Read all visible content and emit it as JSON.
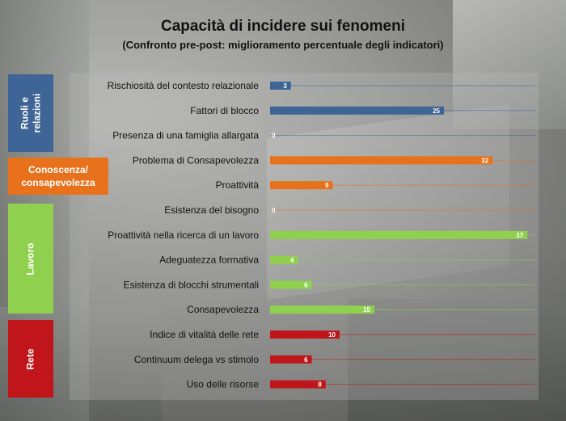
{
  "title": "Capacità di incidere sui fenomeni",
  "subtitle": "(Confronto pre-post: miglioramento percentuale degli indicatori)",
  "groups": [
    {
      "label": "Ruoli e\nrelazioni",
      "color": "#3f6496"
    },
    {
      "label": "Conoscenza/\nconsapevolezza",
      "color": "#e8711c"
    },
    {
      "label": "Lavoro",
      "color": "#8fd14f"
    },
    {
      "label": "Rete",
      "color": "#c0161b"
    }
  ],
  "chart_data": {
    "type": "bar",
    "orientation": "horizontal",
    "title": "Capacità di incidere sui fenomeni",
    "subtitle": "(Confronto pre-post: miglioramento percentuale degli indicatori)",
    "xlim": [
      0,
      40
    ],
    "grid": true,
    "categories": [
      "Rischiosità del contesto relazionale",
      "Fattori di blocco",
      "Presenza di una famiglia allargata",
      "Problema di Consapevolezza",
      "Proattività",
      "Esistenza del bisogno",
      "Proattività nella ricerca di un lavoro",
      "Adeguatezza formativa",
      "Esistenza di blocchi strumentali",
      "Consapevolezza",
      "Indice di vitalità delle rete",
      "Continuum delega vs stimolo",
      "Uso delle risorse"
    ],
    "values": [
      3,
      25,
      0,
      32,
      9,
      0,
      37,
      4,
      6,
      15,
      10,
      6,
      8
    ],
    "group_of": [
      0,
      0,
      0,
      1,
      1,
      1,
      2,
      2,
      2,
      2,
      3,
      3,
      3
    ]
  }
}
